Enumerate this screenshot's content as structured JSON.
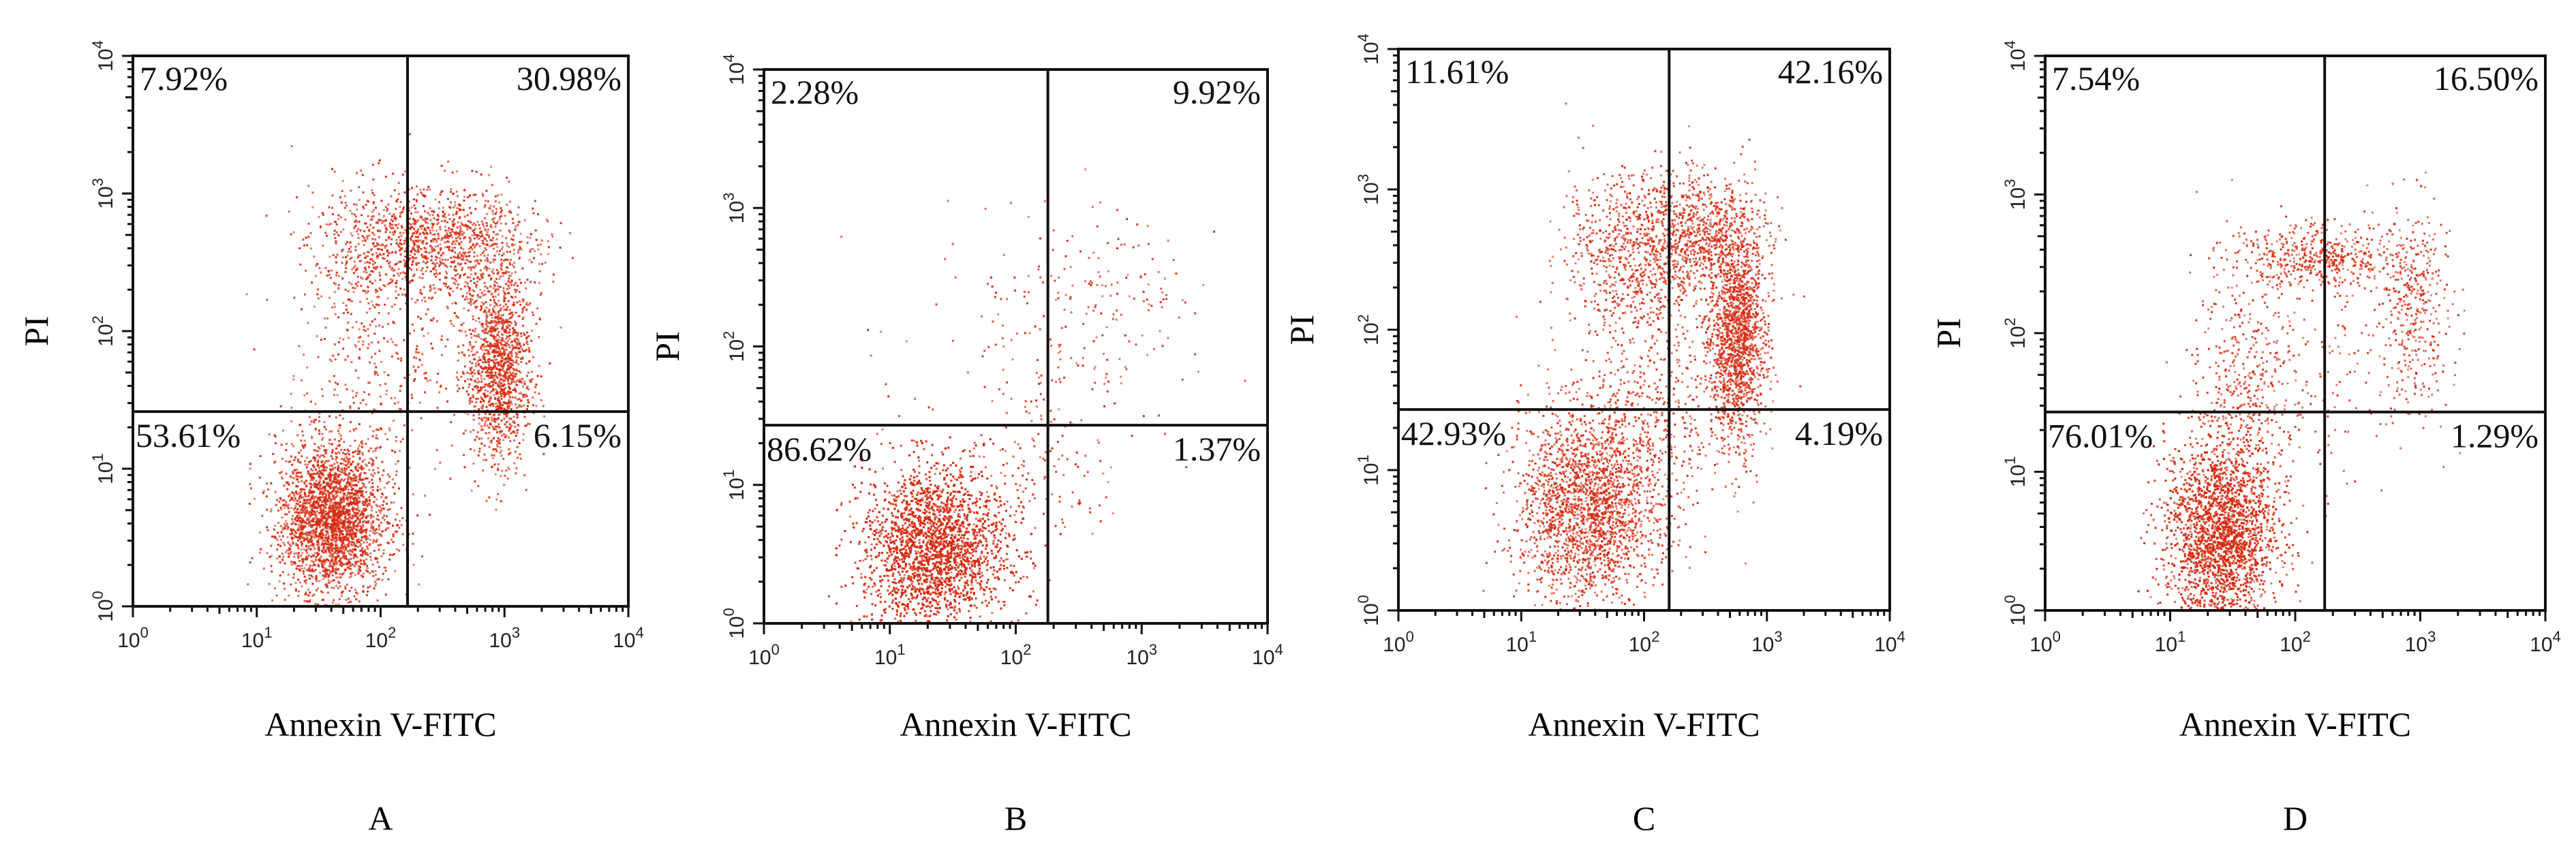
{
  "chart_data": [
    {
      "type": "scatter",
      "panel_label": "A",
      "xlabel": "Annexin V-FITC",
      "ylabel": "PI",
      "xscale": "log",
      "yscale": "log",
      "xlim": [
        1,
        10000
      ],
      "ylim": [
        1,
        10000
      ],
      "ticks": [
        0,
        1,
        2,
        3,
        4
      ],
      "gate": {
        "x": 165,
        "y": 26
      },
      "quadrants": {
        "upper_left": "7.92%",
        "upper_right": "30.98%",
        "lower_left": "53.61%",
        "lower_right": "6.15%"
      },
      "point_color": "#d42a10"
    },
    {
      "type": "scatter",
      "panel_label": "B",
      "xlabel": "Annexin V-FITC",
      "ylabel": "PI",
      "xscale": "log",
      "yscale": "log",
      "xlim": [
        1,
        10000
      ],
      "ylim": [
        1,
        10000
      ],
      "ticks": [
        0,
        1,
        2,
        3,
        4
      ],
      "gate": {
        "x": 180,
        "y": 27
      },
      "quadrants": {
        "upper_left": "2.28%",
        "upper_right": "9.92%",
        "lower_left": "86.62%",
        "lower_right": "1.37%"
      },
      "point_color": "#d42a10"
    },
    {
      "type": "scatter",
      "panel_label": "C",
      "xlabel": "Annexin V-FITC",
      "ylabel": "PI",
      "xscale": "log",
      "yscale": "log",
      "xlim": [
        1,
        10000
      ],
      "ylim": [
        1,
        10000
      ],
      "ticks": [
        0,
        1,
        2,
        3,
        4
      ],
      "gate": {
        "x": 160,
        "y": 27
      },
      "quadrants": {
        "upper_left": "11.61%",
        "upper_right": "42.16%",
        "lower_left": "42.93%",
        "lower_right": "4.19%"
      },
      "point_color": "#d42a10"
    },
    {
      "type": "scatter",
      "panel_label": "D",
      "xlabel": "Annexin V-FITC",
      "ylabel": "PI",
      "xscale": "log",
      "yscale": "log",
      "xlim": [
        1,
        10000
      ],
      "ylim": [
        1,
        10000
      ],
      "ticks": [
        0,
        1,
        2,
        3,
        4
      ],
      "gate": {
        "x": 172,
        "y": 27
      },
      "quadrants": {
        "upper_left": "7.54%",
        "upper_right": "16.50%",
        "lower_left": "76.01%",
        "lower_right": "1.29%"
      },
      "point_color": "#d42a10"
    }
  ]
}
